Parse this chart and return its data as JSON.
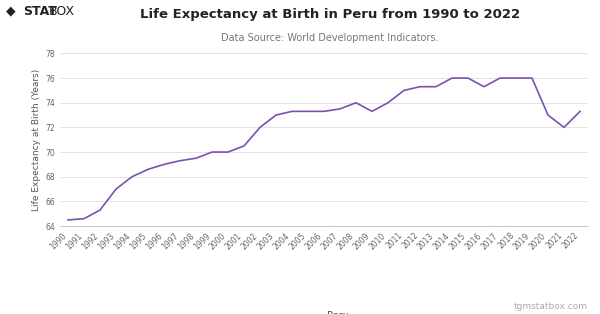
{
  "title": "Life Expectancy at Birth in Peru from 1990 to 2022",
  "subtitle": "Data Source: World Development Indicators.",
  "ylabel": "Life Expectancy at Birth (Years)",
  "legend_label": "Peru",
  "watermark": "tgmstatbox.com",
  "logo_text": "STATBOX",
  "line_color": "#7b52ab",
  "bg_color": "#ffffff",
  "grid_color": "#dddddd",
  "ylim": [
    64,
    78
  ],
  "yticks": [
    64,
    66,
    68,
    70,
    72,
    74,
    76,
    78
  ],
  "years": [
    1990,
    1991,
    1992,
    1993,
    1994,
    1995,
    1996,
    1997,
    1998,
    1999,
    2000,
    2001,
    2002,
    2003,
    2004,
    2005,
    2006,
    2007,
    2008,
    2009,
    2010,
    2011,
    2012,
    2013,
    2014,
    2015,
    2016,
    2017,
    2018,
    2019,
    2020,
    2021,
    2022
  ],
  "values": [
    64.5,
    64.6,
    65.3,
    67.0,
    68.0,
    68.6,
    69.0,
    69.3,
    69.5,
    70.0,
    70.0,
    70.5,
    72.0,
    73.0,
    73.3,
    73.3,
    73.3,
    73.5,
    74.0,
    73.3,
    74.0,
    75.0,
    75.3,
    75.3,
    76.0,
    76.0,
    75.3,
    76.0,
    76.0,
    76.0,
    73.0,
    72.0,
    73.3
  ],
  "title_fontsize": 9.5,
  "subtitle_fontsize": 7,
  "tick_fontsize": 5.5,
  "ylabel_fontsize": 6.5,
  "legend_fontsize": 7,
  "watermark_fontsize": 6.5
}
